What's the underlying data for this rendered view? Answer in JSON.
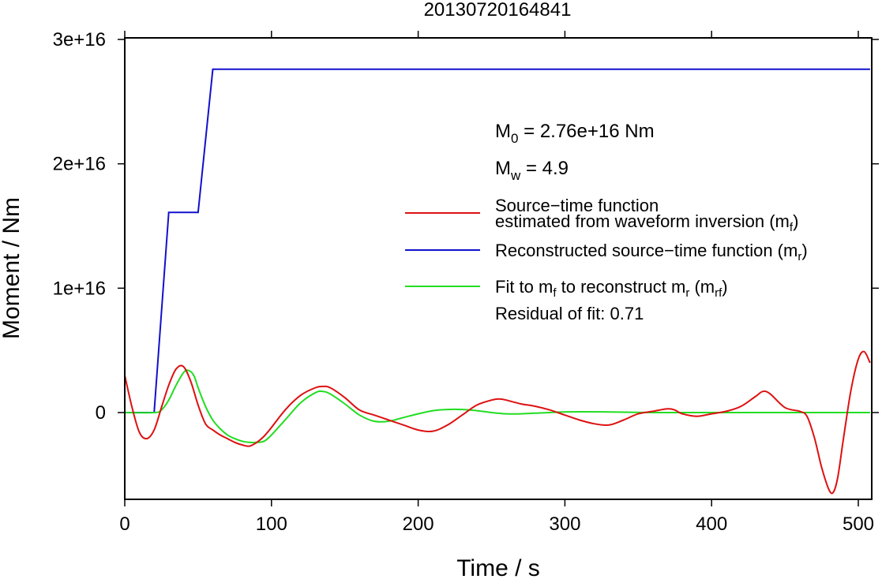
{
  "chart_data": {
    "type": "line",
    "title": "20130720164841",
    "xlabel": "Time / s",
    "ylabel": "Moment / Nm",
    "xlim": [
      0,
      508
    ],
    "ylim": [
      -7000000000000000.0,
      3.05e+16
    ],
    "x_ticks": [
      0,
      100,
      200,
      300,
      400,
      500
    ],
    "x_tick_labels": [
      "0",
      "100",
      "200",
      "300",
      "400",
      "500"
    ],
    "y_ticks": [
      0,
      1e+16,
      2e+16,
      3e+16
    ],
    "y_tick_labels": [
      "0",
      "1e+16",
      "2e+16",
      "3e+16"
    ],
    "grid": false,
    "legend_position": "right",
    "annotations": {
      "m0": {
        "prefix": "M",
        "sub": "0",
        "text": " = 2.76e+16 Nm"
      },
      "mw": {
        "prefix": "M",
        "sub": "w",
        "text": " = 4.9"
      },
      "residual": "Residual of fit: 0.71"
    },
    "series": [
      {
        "name": "Source−time function estimated from waveform inversion (mf)",
        "color": "#dd1111",
        "x": [
          0,
          5,
          10,
          15,
          20,
          25,
          30,
          35,
          40,
          45,
          50,
          55,
          60,
          65,
          70,
          75,
          80,
          85,
          90,
          95,
          100,
          110,
          120,
          130,
          135,
          140,
          150,
          160,
          170,
          180,
          190,
          200,
          210,
          220,
          230,
          240,
          250,
          255,
          260,
          270,
          280,
          290,
          300,
          310,
          320,
          330,
          340,
          350,
          360,
          370,
          375,
          380,
          390,
          400,
          410,
          420,
          430,
          435,
          440,
          450,
          460,
          465,
          470,
          475,
          480,
          483,
          486,
          490,
          495,
          500,
          504,
          508
        ],
        "y": [
          3000000000000000.0,
          400000000000000.0,
          -1600000000000000.0,
          -2100000000000000.0,
          -1400000000000000.0,
          400000000000000.0,
          2200000000000000.0,
          3500000000000000.0,
          3700000000000000.0,
          2500000000000000.0,
          600000000000000.0,
          -900000000000000.0,
          -1400000000000000.0,
          -1800000000000000.0,
          -2100000000000000.0,
          -2400000000000000.0,
          -2600000000000000.0,
          -2700000000000000.0,
          -2400000000000000.0,
          -1900000000000000.0,
          -1200000000000000.0,
          300000000000000.0,
          1400000000000000.0,
          2000000000000000.0,
          2100000000000000.0,
          2000000000000000.0,
          1200000000000000.0,
          200000000000000.0,
          -200000000000000.0,
          -600000000000000.0,
          -1000000000000000.0,
          -1400000000000000.0,
          -1500000000000000.0,
          -1000000000000000.0,
          -200000000000000.0,
          600000000000000.0,
          1000000000000000.0,
          1100000000000000.0,
          1000000000000000.0,
          700000000000000.0,
          500000000000000.0,
          200000000000000.0,
          -200000000000000.0,
          -600000000000000.0,
          -900000000000000.0,
          -1000000000000000.0,
          -600000000000000.0,
          -100000000000000.0,
          100000000000000.0,
          300000000000000.0,
          200000000000000.0,
          -100000000000000.0,
          -300000000000000.0,
          -100000000000000.0,
          100000000000000.0,
          500000000000000.0,
          1300000000000000.0,
          1700000000000000.0,
          1500000000000000.0,
          400000000000000.0,
          100000000000000.0,
          -300000000000000.0,
          -2000000000000000.0,
          -4400000000000000.0,
          -6200000000000000.0,
          -6400000000000000.0,
          -5200000000000000.0,
          -2000000000000000.0,
          1800000000000000.0,
          4300000000000000.0,
          4900000000000000.0,
          4000000000000000.0
        ]
      },
      {
        "name": "Reconstructed source−time function (mr)",
        "color": "#1111cc",
        "x": [
          0,
          20,
          30,
          50,
          60,
          508
        ],
        "y": [
          0,
          0,
          1.61e+16,
          1.61e+16,
          2.76e+16,
          2.76e+16
        ]
      },
      {
        "name": "Fit to mf to reconstruct mr (mrf)",
        "color": "#22dd22",
        "x": [
          0,
          20,
          25,
          30,
          35,
          40,
          43,
          47,
          50,
          55,
          60,
          65,
          70,
          75,
          80,
          85,
          90,
          95,
          100,
          110,
          120,
          130,
          135,
          140,
          150,
          160,
          170,
          180,
          190,
          200,
          210,
          220,
          230,
          240,
          250,
          260,
          270,
          280,
          300,
          330,
          360,
          400,
          440,
          470,
          508
        ],
        "y": [
          0,
          0,
          200000000000000.0,
          1000000000000000.0,
          2200000000000000.0,
          3200000000000000.0,
          3400000000000000.0,
          3000000000000000.0,
          2000000000000000.0,
          500000000000000.0,
          -600000000000000.0,
          -1300000000000000.0,
          -1800000000000000.0,
          -2100000000000000.0,
          -2300000000000000.0,
          -2400000000000000.0,
          -2400000000000000.0,
          -2300000000000000.0,
          -1800000000000000.0,
          -500000000000000.0,
          800000000000000.0,
          1600000000000000.0,
          1700000000000000.0,
          1500000000000000.0,
          700000000000000.0,
          -200000000000000.0,
          -700000000000000.0,
          -700000000000000.0,
          -400000000000000.0,
          -100000000000000.0,
          150000000000000.0,
          250000000000000.0,
          250000000000000.0,
          150000000000000.0,
          0,
          -100000000000000.0,
          -100000000000000.0,
          -50000000000000.0,
          50000000000000.0,
          50000000000000.0,
          0,
          0,
          0,
          0,
          0
        ]
      }
    ],
    "legend": [
      {
        "lines": [
          "Source−time function",
          "estimated from waveform inversion (m",
          "f",
          ")"
        ],
        "color": "#dd1111"
      },
      {
        "lines": [
          "Reconstructed source−time function (m",
          "r",
          ")"
        ],
        "color": "#1111cc"
      },
      {
        "lines": [
          "Fit to m",
          "f",
          " to reconstruct m",
          "r",
          " (m",
          "rf",
          ")"
        ],
        "color": "#22dd22"
      }
    ]
  }
}
